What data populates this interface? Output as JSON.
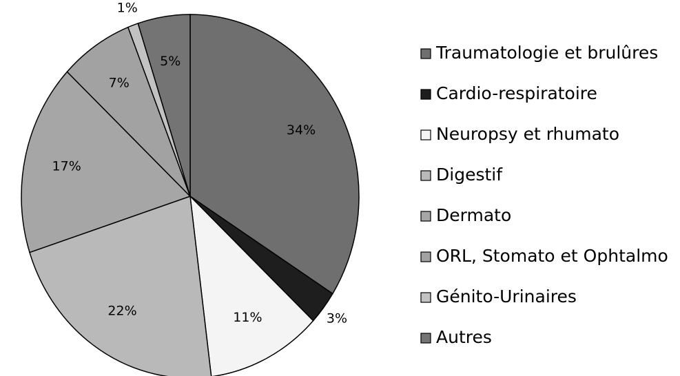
{
  "chart_data": {
    "type": "pie",
    "categories": [
      "Traumatologie et brulûres",
      "Cardio-respiratoire",
      "Neuropsy et rhumato",
      "Digestif",
      "Dermato",
      "ORL, Stomato et Ophtalmo",
      "Génito-Urinaires",
      "Autres"
    ],
    "values": [
      34,
      3,
      11,
      22,
      17,
      7,
      1,
      5
    ],
    "value_labels": [
      "34%",
      "3%",
      "11%",
      "22%",
      "17%",
      "7%",
      "1%",
      "5%"
    ],
    "colors": [
      "#6f6f6f",
      "#1e1e1e",
      "#f4f4f4",
      "#b9b9b9",
      "#a6a6a6",
      "#a2a2a2",
      "#c2c2c2",
      "#747474"
    ],
    "legend": "right"
  }
}
